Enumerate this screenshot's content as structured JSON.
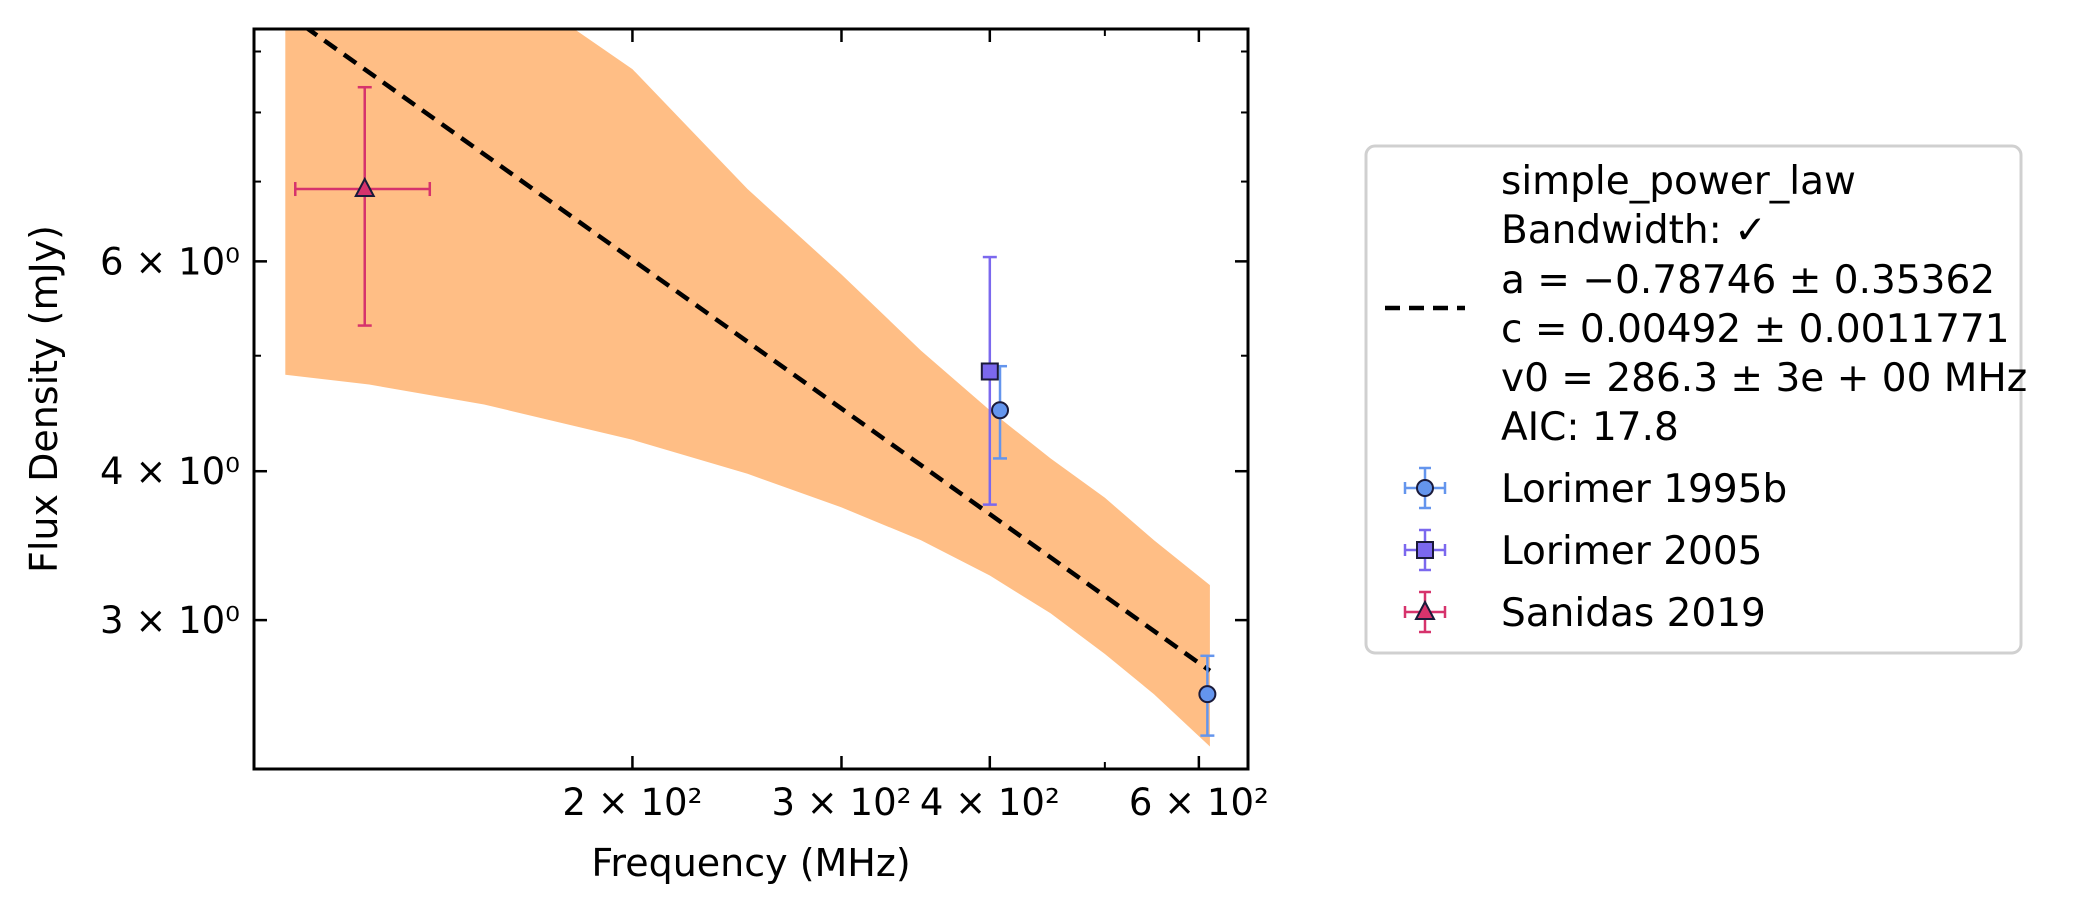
{
  "chart_data": {
    "type": "scatter",
    "xlabel": "Frequency (MHz)",
    "ylabel": "Flux Density (mJy)",
    "xscale": "log",
    "yscale": "log",
    "xlim": [
      96,
      660
    ],
    "ylim": [
      2.25,
      9.4
    ],
    "x_ticks": [
      {
        "value": 200,
        "label": "2 × 10²"
      },
      {
        "value": 300,
        "label": "3 × 10²"
      },
      {
        "value": 400,
        "label": "4 × 10²"
      },
      {
        "value": 600,
        "label": "6 × 10²"
      }
    ],
    "x_minor_ticks": [
      500
    ],
    "y_ticks": [
      {
        "value": 3,
        "label": "3 × 10⁰"
      },
      {
        "value": 4,
        "label": "4 × 10⁰"
      },
      {
        "value": 6,
        "label": "6 × 10⁰"
      }
    ],
    "y_minor_ticks": [
      5,
      7,
      8,
      9
    ],
    "grid": false,
    "legend_position": "outside-right",
    "model": {
      "name": "simple_power_law",
      "legend_lines": [
        "simple_power_law",
        "Bandwidth: ✓",
        "a = −0.78746 ± 0.35362",
        "c = 0.00492 ± 0.0011771",
        "v0 = 286.3 ± 3e + 00 MHz",
        "AIC: 17.8"
      ],
      "a": -0.78746,
      "c": 0.00492,
      "v0": 286.3,
      "line": {
        "x": [
          102,
          613
        ],
        "y": [
          9.7,
          2.72
        ]
      },
      "band": {
        "x": [
          102,
          120,
          150,
          200,
          250,
          300,
          350,
          400,
          450,
          500,
          550,
          613
        ],
        "lower": [
          4.82,
          4.73,
          4.55,
          4.25,
          3.98,
          3.73,
          3.5,
          3.27,
          3.04,
          2.81,
          2.6,
          2.35
        ],
        "upper": [
          11.6,
          11.3,
          10.6,
          8.7,
          6.9,
          5.85,
          5.05,
          4.5,
          4.1,
          3.8,
          3.5,
          3.21
        ]
      },
      "color": "#000000",
      "band_color": "#ffbe85"
    },
    "series": [
      {
        "name": "Lorimer 1995b",
        "marker": "circle",
        "color": "#6495ed",
        "edge_color": "#1a1a3a",
        "points": [
          {
            "x": 408,
            "y": 4.5,
            "yerr_low": 0.4,
            "yerr_high": 0.4
          },
          {
            "x": 610,
            "y": 2.6,
            "yerr_low": 0.2,
            "yerr_high": 0.2
          }
        ]
      },
      {
        "name": "Lorimer 2005",
        "marker": "square",
        "color": "#7b68ee",
        "edge_color": "#1a1a3a",
        "points": [
          {
            "x": 400,
            "y": 4.85,
            "yerr_low": 1.1,
            "yerr_high": 1.2
          }
        ]
      },
      {
        "name": "Sanidas 2019",
        "marker": "triangle",
        "color": "#d6336c",
        "edge_color": "#1a1a3a",
        "points": [
          {
            "x": 119,
            "y": 6.9,
            "yerr_low": 1.6,
            "yerr_high": 1.5,
            "xerr_low": 15,
            "xerr_high": 16
          }
        ]
      }
    ]
  }
}
